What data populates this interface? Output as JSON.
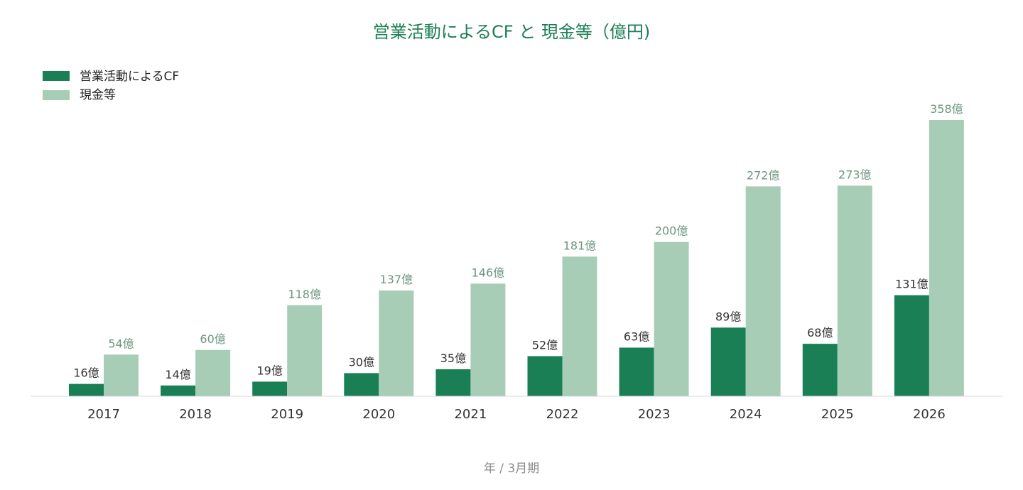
{
  "chart_data": {
    "type": "bar",
    "title": "営業活動によるCF と 現金等（億円)",
    "xlabel": "年 / 3月期",
    "ylabel": "",
    "categories": [
      "2017",
      "2018",
      "2019",
      "2020",
      "2021",
      "2022",
      "2023",
      "2024",
      "2025",
      "2026"
    ],
    "series": [
      {
        "name": "営業活動によるCF",
        "values": [
          16,
          14,
          19,
          30,
          35,
          52,
          63,
          89,
          68,
          131
        ],
        "labels": [
          "16億",
          "14億",
          "19億",
          "30億",
          "35億",
          "52億",
          "63億",
          "89億",
          "68億",
          "131億"
        ],
        "color": "#1b7f55"
      },
      {
        "name": "現金等",
        "values": [
          54,
          60,
          118,
          137,
          146,
          181,
          200,
          272,
          273,
          358
        ],
        "labels": [
          "54億",
          "60億",
          "118億",
          "137億",
          "146億",
          "181億",
          "200億",
          "272億",
          "273億",
          "358億"
        ],
        "color": "#a8cdb7"
      }
    ],
    "ylim": [
      0,
      358
    ],
    "grid": false,
    "legend": "top-left"
  }
}
